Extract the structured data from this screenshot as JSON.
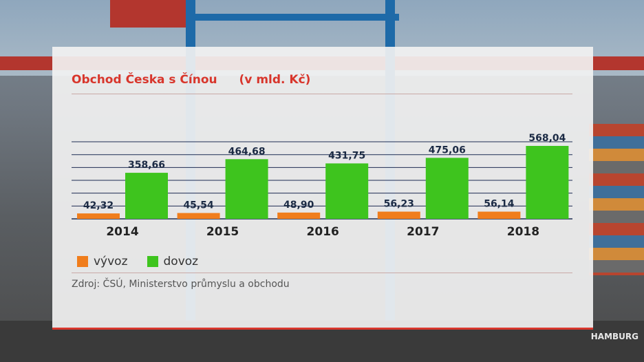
{
  "title": "Obchod Česka s Čínou",
  "unit": "(v mld. Kč)",
  "source": "Zdroj: ČSÚ, Ministerstvo průmyslu a obchodu",
  "colors": {
    "accent": "#d8362c",
    "export": "#f07d1c",
    "import": "#3ec41e"
  },
  "chart_data": {
    "type": "bar",
    "categories": [
      "2014",
      "2015",
      "2016",
      "2017",
      "2018"
    ],
    "series": [
      {
        "name": "vývoz",
        "values": [
          42.32,
          45.54,
          48.9,
          56.23,
          56.14
        ],
        "labels": [
          "42,32",
          "45,54",
          "48,90",
          "56,23",
          "56,14"
        ]
      },
      {
        "name": "dovoz",
        "values": [
          358.66,
          464.68,
          431.75,
          475.06,
          568.04
        ],
        "labels": [
          "358,66",
          "464,68",
          "431,75",
          "475,06",
          "568,04"
        ]
      }
    ],
    "ylim": [
      0,
      600
    ],
    "grid": true,
    "legend": "bottom-left"
  },
  "background": {
    "ship_text": "HAMBURG"
  }
}
